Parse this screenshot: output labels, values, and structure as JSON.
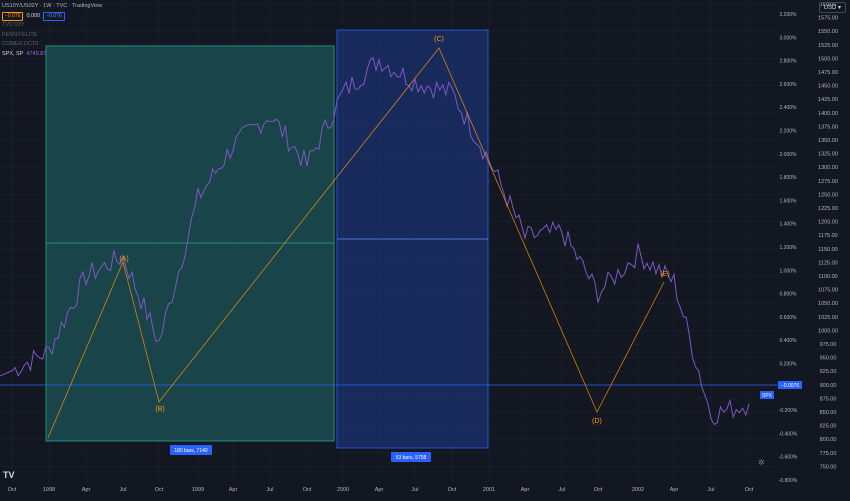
{
  "header": {
    "symbol_label": "US10Y/US02Y · 1W · TVC · TradingView",
    "chip_left": "−0.076",
    "middle_value": "0.000",
    "chip_right": "−0.076",
    "sub_rows": [
      "TVC:02Y",
      "PENNY:ELITE",
      "COMEX:OCT0"
    ],
    "spx_label": "SPX, SP",
    "spx_value": "4745.87"
  },
  "currency": "USD",
  "right_axis": {
    "labels": [
      "160.00",
      "1575.00",
      "1550.00",
      "1525.00",
      "1500.00",
      "1475.00",
      "1450.00",
      "1425.00",
      "1400.00",
      "1375.00",
      "1350.00",
      "1325.00",
      "1300.00",
      "1275.00",
      "1250.00",
      "1225.00",
      "1200.00",
      "1175.00",
      "1150.00",
      "1125.00",
      "1100.00",
      "1075.00",
      "1050.00",
      "1025.00",
      "1000.00",
      "975.00",
      "950.00",
      "925.00",
      "900.00",
      "875.00",
      "850.00",
      "825.00",
      "800.00",
      "775.00",
      "750.00"
    ]
  },
  "left_axis": {
    "labels": [
      "3.200%",
      "3.000%",
      "2.800%",
      "2.600%",
      "2.400%",
      "2.200%",
      "2.000%",
      "1.800%",
      "1.600%",
      "1.400%",
      "1.200%",
      "1.000%",
      "0.800%",
      "0.600%",
      "0.400%",
      "0.200%",
      "0.000%",
      "-0.200%",
      "-0.400%",
      "-0.600%",
      "-0.800%"
    ]
  },
  "x_axis": {
    "labels": [
      "Oct",
      "1998",
      "Apr",
      "Jul",
      "Oct",
      "1999",
      "Apr",
      "Jul",
      "Oct",
      "2000",
      "Apr",
      "Jul",
      "Oct",
      "2001",
      "Apr",
      "Jul",
      "Oct",
      "2002",
      "Apr",
      "Jul",
      "Oct"
    ]
  },
  "waves": [
    "(A)",
    "(B)",
    "(C)",
    "(D)",
    "(E)"
  ],
  "range_boxes": [
    {
      "label": "180 bars, 7140",
      "color": "#26a69a"
    },
    {
      "label": "53 bars, 5758",
      "color": "#2962ff"
    }
  ],
  "badges": {
    "ratio": "−0.0076",
    "spx": "SPX"
  },
  "colors": {
    "background": "#131722",
    "price": "#7e57c2",
    "wave": "#ff9800",
    "teal": "#26a69a",
    "blue": "#2962ff"
  },
  "chart_data": {
    "type": "line",
    "title": "SPX, SP",
    "x": [
      "1997-10",
      "1998-01",
      "1998-04",
      "1998-07",
      "1998-10",
      "1999-01",
      "1999-04",
      "1999-07",
      "1999-10",
      "2000-01",
      "2000-04",
      "2000-07",
      "2000-10",
      "2001-01",
      "2001-04",
      "2001-07",
      "2001-10",
      "2002-01",
      "2002-04",
      "2002-07",
      "2002-10"
    ],
    "series": [
      {
        "name": "SPX",
        "values": [
          940,
          975,
          1110,
          1145,
          990,
          1250,
          1345,
          1400,
          1310,
          1440,
          1500,
          1460,
          1440,
          1320,
          1180,
          1190,
          1080,
          1150,
          1100,
          860,
          880
        ]
      }
    ],
    "waves": [
      {
        "label": "(A)",
        "date": "1998-07",
        "price": 1195
      },
      {
        "label": "(B)",
        "date": "1998-10",
        "price": 895
      },
      {
        "label": "(C)",
        "date": "2000-08",
        "price": 1550
      },
      {
        "label": "(D)",
        "date": "2001-09",
        "price": 880
      },
      {
        "label": "(E)",
        "date": "2002-03",
        "price": 1170
      }
    ],
    "ylim": [
      750,
      1600
    ]
  }
}
